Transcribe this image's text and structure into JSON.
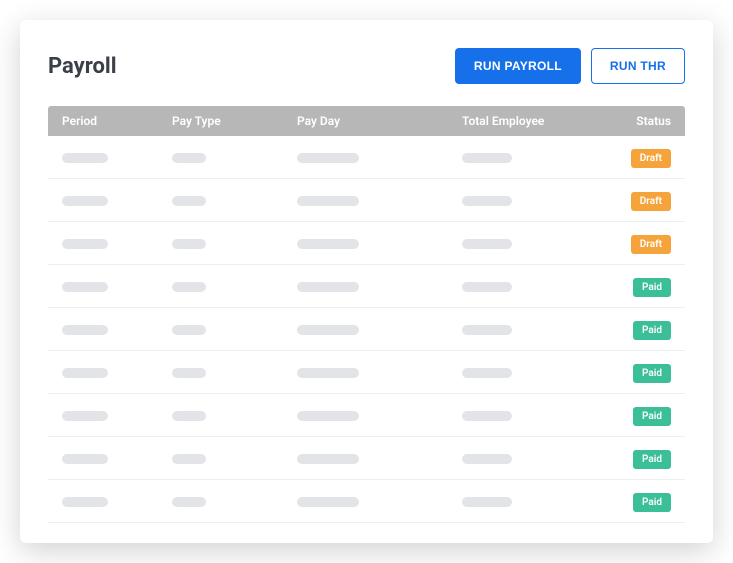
{
  "header": {
    "title": "Payroll",
    "run_payroll_label": "RUN PAYROLL",
    "run_thr_label": "RUN THR"
  },
  "colors": {
    "primary": "#1670ea",
    "header_row": "#b7b7b7",
    "skeleton": "#e2e4e7",
    "status_draft": "#f5a43b",
    "status_paid": "#3bbf99"
  },
  "table": {
    "columns": {
      "period": "Period",
      "pay_type": "Pay Type",
      "pay_day": "Pay Day",
      "total_employee": "Total Employee",
      "status": "Status"
    },
    "rows": [
      {
        "status_label": "Draft",
        "status_kind": "draft"
      },
      {
        "status_label": "Draft",
        "status_kind": "draft"
      },
      {
        "status_label": "Draft",
        "status_kind": "draft"
      },
      {
        "status_label": "Paid",
        "status_kind": "paid"
      },
      {
        "status_label": "Paid",
        "status_kind": "paid"
      },
      {
        "status_label": "Paid",
        "status_kind": "paid"
      },
      {
        "status_label": "Paid",
        "status_kind": "paid"
      },
      {
        "status_label": "Paid",
        "status_kind": "paid"
      },
      {
        "status_label": "Paid",
        "status_kind": "paid"
      }
    ]
  }
}
